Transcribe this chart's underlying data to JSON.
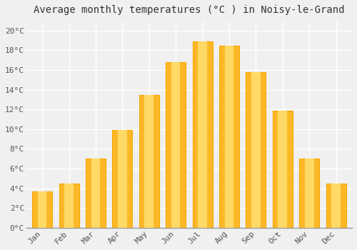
{
  "months": [
    "Jan",
    "Feb",
    "Mar",
    "Apr",
    "May",
    "Jun",
    "Jul",
    "Aug",
    "Sep",
    "Oct",
    "Nov",
    "Dec"
  ],
  "temperatures": [
    3.7,
    4.5,
    7.0,
    9.9,
    13.5,
    16.8,
    18.9,
    18.5,
    15.8,
    11.9,
    7.0,
    4.5
  ],
  "bar_color_main": "#FDB827",
  "bar_color_edge": "#F5A800",
  "title": "Average monthly temperatures (°C ) in Noisy-le-Grand",
  "ylim": [
    0,
    21
  ],
  "yticks": [
    0,
    2,
    4,
    6,
    8,
    10,
    12,
    14,
    16,
    18,
    20
  ],
  "ytick_labels": [
    "0°C",
    "2°C",
    "4°C",
    "6°C",
    "8°C",
    "10°C",
    "12°C",
    "14°C",
    "16°C",
    "18°C",
    "20°C"
  ],
  "background_color": "#f0f0f0",
  "grid_color": "#ffffff",
  "title_fontsize": 10,
  "tick_fontsize": 8,
  "title_font_family": "monospace",
  "tick_font_family": "monospace",
  "bar_width": 0.75
}
